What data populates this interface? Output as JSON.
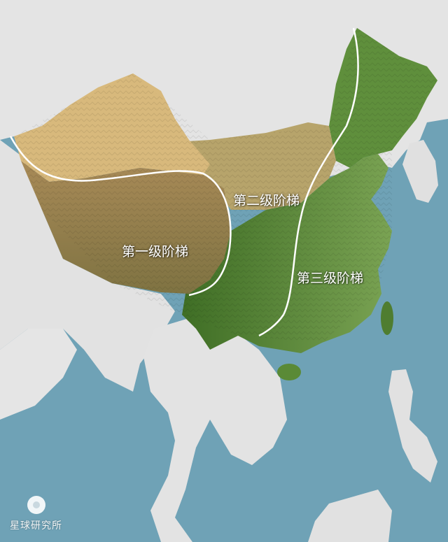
{
  "map": {
    "labels": {
      "step1": "第一级阶梯",
      "step2": "第二级阶梯",
      "step3": "第三级阶梯"
    },
    "watermark": "星球研究所",
    "colors": {
      "ocean": "#6fa2b6",
      "land_outside": "#e6e6e6",
      "plateau_tibet": "#9a7d4e",
      "desert": "#d9bb80",
      "lowland_green": "#5e8a3a",
      "boundary_line": "#ffffff"
    }
  }
}
